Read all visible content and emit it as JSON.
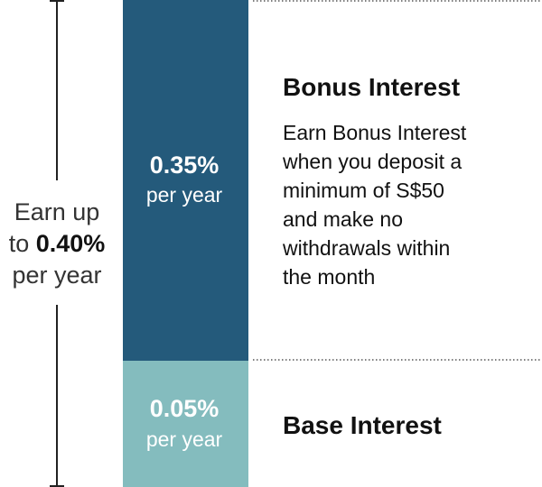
{
  "left_label": {
    "line1": "Earn up",
    "prefix": "to",
    "highlight": "0.40%",
    "line3": "per year"
  },
  "segments": [
    {
      "rate": "0.35%",
      "unit": "per year",
      "title": "Bonus Interest",
      "description": [
        "Earn Bonus Interest",
        "when you deposit a",
        "minimum of S$50",
        "and make no",
        "withdrawals within",
        "the month"
      ]
    },
    {
      "rate": "0.05%",
      "unit": "per year",
      "title": "Base Interest"
    }
  ]
}
